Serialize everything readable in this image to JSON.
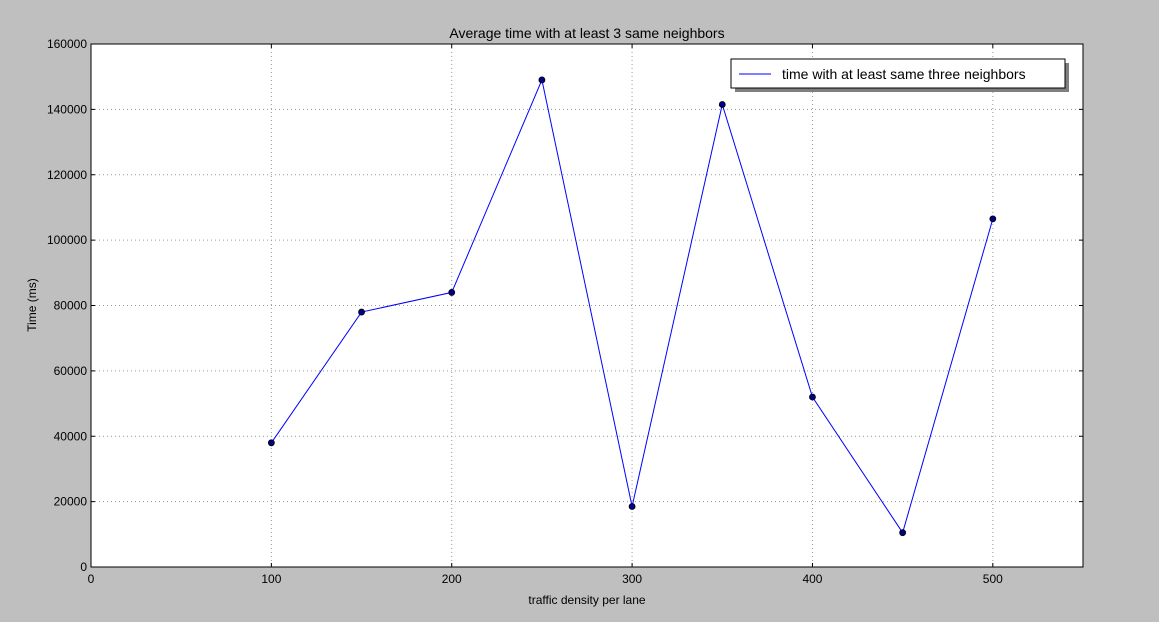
{
  "chart_data": {
    "type": "line",
    "title": "Average time with at least 3 same neighbors",
    "xlabel": "traffic density per lane",
    "ylabel": "Time (ms)",
    "xlim": [
      0,
      550
    ],
    "ylim": [
      0,
      160000
    ],
    "xticks": [
      0,
      100,
      200,
      300,
      400,
      500
    ],
    "yticks": [
      0,
      20000,
      40000,
      60000,
      80000,
      100000,
      120000,
      140000,
      160000
    ],
    "grid": true,
    "legend_position": "top-right",
    "series": [
      {
        "name": "time with at least same three neighbors",
        "color": "#0000ff",
        "marker_color": "#00008b",
        "x": [
          100,
          150,
          200,
          250,
          300,
          350,
          400,
          450,
          500
        ],
        "y": [
          38000,
          78000,
          84000,
          149000,
          18500,
          141500,
          52000,
          10500,
          106500
        ]
      }
    ]
  },
  "colors": {
    "background": "#bfbfbf",
    "plot_area": "#ffffff",
    "grid": "#9a9a9a"
  }
}
